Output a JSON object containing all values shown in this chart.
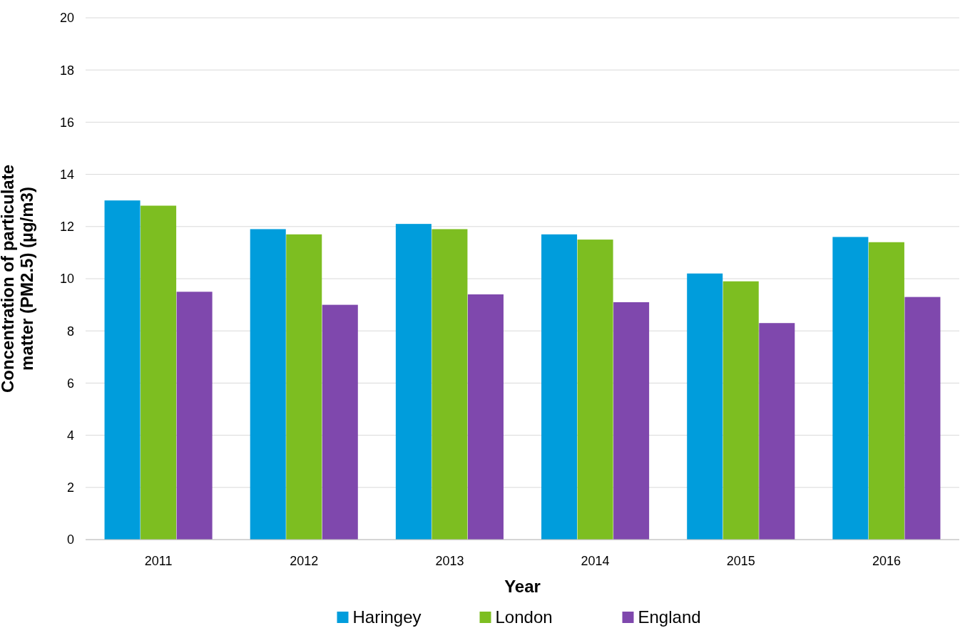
{
  "chart_data": {
    "type": "bar",
    "xlabel": "Year",
    "ylabel": "Concentration of particulate\nmatter (PM2.5) (µg/m3)",
    "categories": [
      "2011",
      "2012",
      "2013",
      "2014",
      "2015",
      "2016"
    ],
    "series": [
      {
        "name": "Haringey",
        "color": "#009ddc",
        "values": [
          13.0,
          11.9,
          12.1,
          11.7,
          10.2,
          11.6
        ]
      },
      {
        "name": "London",
        "color": "#7dbe21",
        "values": [
          12.8,
          11.7,
          11.9,
          11.5,
          9.9,
          11.4
        ]
      },
      {
        "name": "England",
        "color": "#7f48ad",
        "values": [
          9.5,
          9.0,
          9.4,
          9.1,
          8.3,
          9.3
        ]
      }
    ],
    "ylim": [
      0,
      20
    ],
    "yticks": [
      0,
      2,
      4,
      6,
      8,
      10,
      12,
      14,
      16,
      18,
      20
    ],
    "grid": "y",
    "legend": "bottom"
  }
}
